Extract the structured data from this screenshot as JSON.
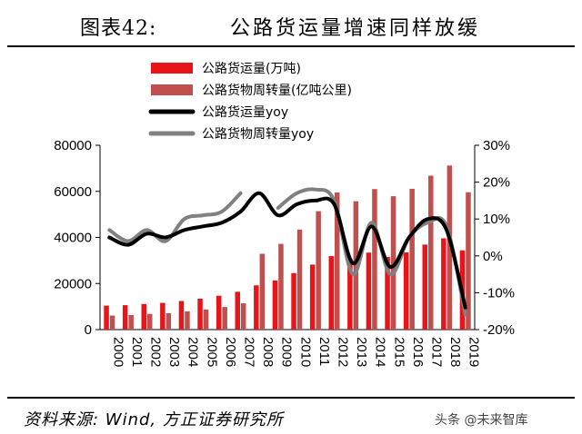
{
  "header": {
    "figure_label": "图表42:",
    "figure_title": "公路货运量增速同样放缓"
  },
  "footer": {
    "source": "资料来源: Wind, 方正证券研究所",
    "watermark": "头条 @未来智库"
  },
  "colors": {
    "freight_volume": "#e8141a",
    "turnover": "#c0504d",
    "volume_yoy": "#000000",
    "turnover_yoy": "#808080"
  },
  "chart_data": {
    "type": "bar",
    "title": "公路货运量增速同样放缓",
    "categories": [
      "2000",
      "2001",
      "2002",
      "2003",
      "2004",
      "2005",
      "2006",
      "2007",
      "2008",
      "2009",
      "2010",
      "2011",
      "2012",
      "2013",
      "2014",
      "2015",
      "2016",
      "2017",
      "2018",
      "2019"
    ],
    "series": [
      {
        "name": "公路货运量(万吨)",
        "type": "bar",
        "axis": "left",
        "values": [
          10400,
          10600,
          11100,
          11600,
          12400,
          13400,
          14700,
          16400,
          19200,
          21300,
          24500,
          28200,
          31900,
          30800,
          33400,
          31500,
          33500,
          36900,
          39600,
          34400
        ]
      },
      {
        "name": "公路货物周转量(亿吨公里)",
        "type": "bar",
        "axis": "left",
        "values": [
          6100,
          6300,
          6800,
          7100,
          7900,
          8700,
          9800,
          11400,
          32900,
          37200,
          43400,
          51400,
          59500,
          55700,
          61000,
          57900,
          61100,
          66800,
          71200,
          59600
        ]
      },
      {
        "name": "公路货运量yoy",
        "type": "line",
        "axis": "right",
        "values": [
          0.05,
          0.03,
          0.06,
          0.05,
          0.07,
          0.08,
          0.09,
          0.12,
          0.17,
          0.11,
          0.14,
          0.15,
          0.14,
          -0.02,
          0.08,
          -0.03,
          0.05,
          0.1,
          0.07,
          -0.14
        ]
      },
      {
        "name": "公路货物周转量yoy",
        "type": "line",
        "axis": "right",
        "values": [
          0.07,
          0.04,
          0.07,
          0.04,
          0.1,
          0.11,
          0.12,
          0.17,
          null,
          0.13,
          0.17,
          0.18,
          0.15,
          -0.05,
          0.09,
          -0.05,
          0.05,
          0.09,
          0.08,
          -0.16
        ]
      }
    ],
    "y_left": {
      "min": 0,
      "max": 80000,
      "ticks": [
        "0",
        "20000",
        "40000",
        "60000",
        "80000"
      ]
    },
    "y_right": {
      "min": -0.2,
      "max": 0.3,
      "ticks": [
        "-20%",
        "-10%",
        "0%",
        "10%",
        "20%",
        "30%"
      ]
    },
    "legend_position": "top-left",
    "grid": false
  }
}
